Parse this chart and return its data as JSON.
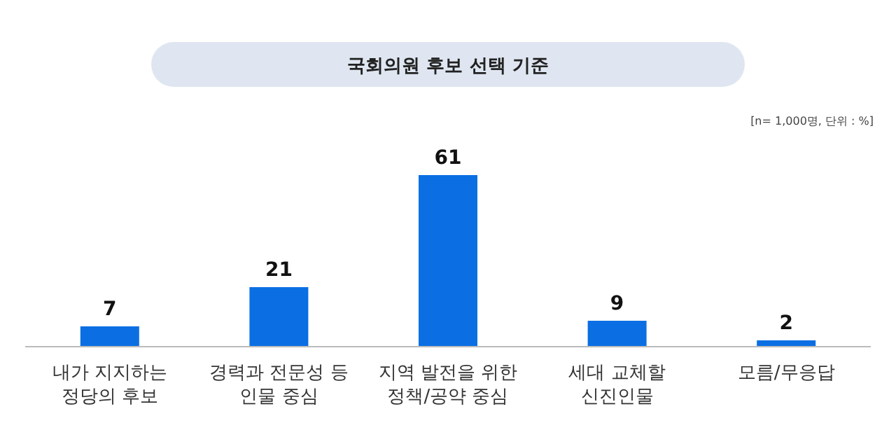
{
  "chart_data": {
    "type": "bar",
    "title": "국회의원 후보 선택 기준",
    "annotations": [
      "[n= 1,000명, 단위 : %]"
    ],
    "categories": [
      "내가 지지하는\n정당의 후보",
      "경력과 전문성 등\n인물 중심",
      "지역 발전을 위한\n정책/공약 중심",
      "세대 교체할\n신진인물",
      "모름/무응답"
    ],
    "values": [
      7,
      21,
      61,
      9,
      2
    ],
    "color": "#0b6fe3",
    "data_labels": true
  }
}
